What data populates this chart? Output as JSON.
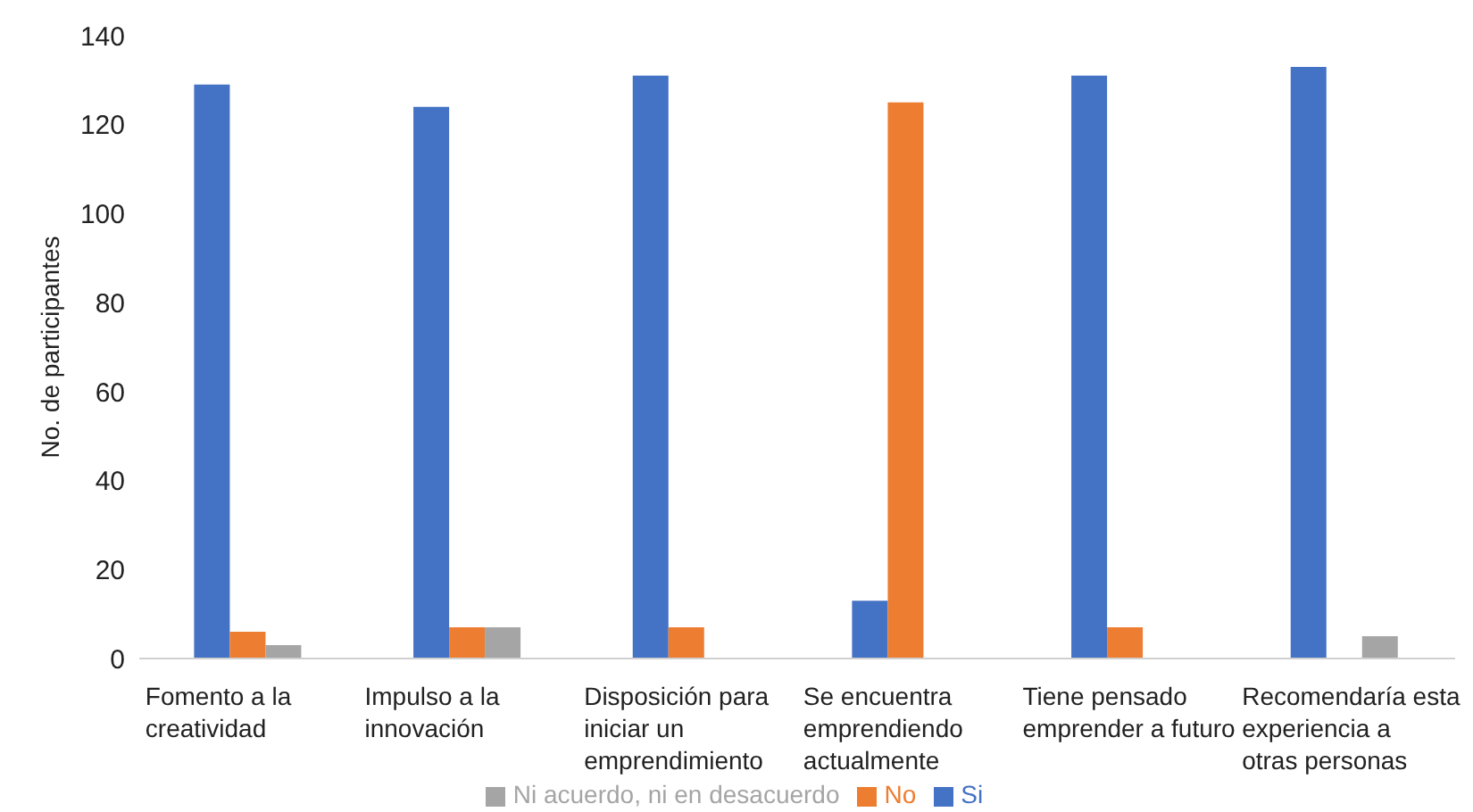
{
  "chart_data": {
    "type": "bar",
    "ylabel": "No. de participantes",
    "categories": [
      "Fomento a la creatividad",
      "Impulso  a la innovación",
      "Disposición para iniciar un emprendimiento",
      "Se encuentra emprendiendo actualmente",
      "Tiene pensado emprender a futuro",
      "Recomendaría esta experiencia a otras personas"
    ],
    "series": [
      {
        "name": "Si",
        "color": "#4472c4",
        "values": [
          129,
          124,
          131,
          13,
          131,
          133
        ]
      },
      {
        "name": "No",
        "color": "#ed7d31",
        "values": [
          6,
          7,
          7,
          125,
          7,
          0
        ]
      },
      {
        "name": "Ni acuerdo, ni en desacuerdo",
        "color": "#a5a5a5",
        "values": [
          3,
          7,
          0,
          0,
          0,
          5
        ]
      }
    ],
    "ylim": [
      0,
      140
    ],
    "yticks": [
      0,
      20,
      40,
      60,
      80,
      100,
      120,
      140
    ],
    "grid": false,
    "legend": "bottom"
  }
}
